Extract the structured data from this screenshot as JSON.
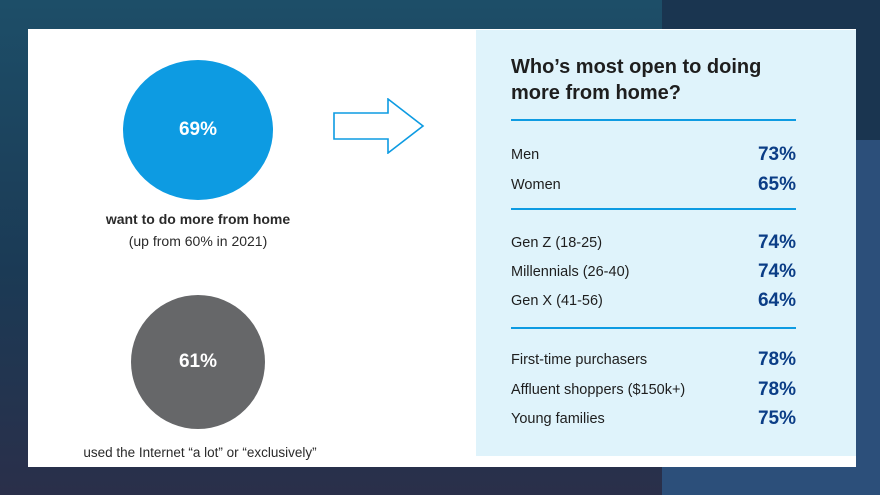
{
  "left": {
    "stat1": {
      "value": "69%",
      "caption": "want to do more from home",
      "subcaption": "(up from 60% in 2021)",
      "color": "#0d9be2"
    },
    "stat2": {
      "value": "61%",
      "caption": "used the Internet “a lot” or “exclusively”",
      "color": "#666769"
    }
  },
  "panel": {
    "title_line1": "Who’s most open to doing",
    "title_line2": "more from home?",
    "groups": [
      [
        {
          "label": "Men",
          "value": "73%"
        },
        {
          "label": "Women",
          "value": "65%"
        }
      ],
      [
        {
          "label": "Gen Z (18-25)",
          "value": "74%"
        },
        {
          "label": "Millennials (26-40)",
          "value": "74%"
        },
        {
          "label": "Gen X (41-56)",
          "value": "64%"
        }
      ],
      [
        {
          "label": "First-time purchasers",
          "value": "78%"
        },
        {
          "label": "Affluent shoppers ($150k+)",
          "value": "78%"
        },
        {
          "label": "Young families",
          "value": "75%"
        }
      ]
    ],
    "accent_color": "#0d9be2",
    "value_color": "#0b3d86",
    "background_color": "#dff3fb"
  }
}
